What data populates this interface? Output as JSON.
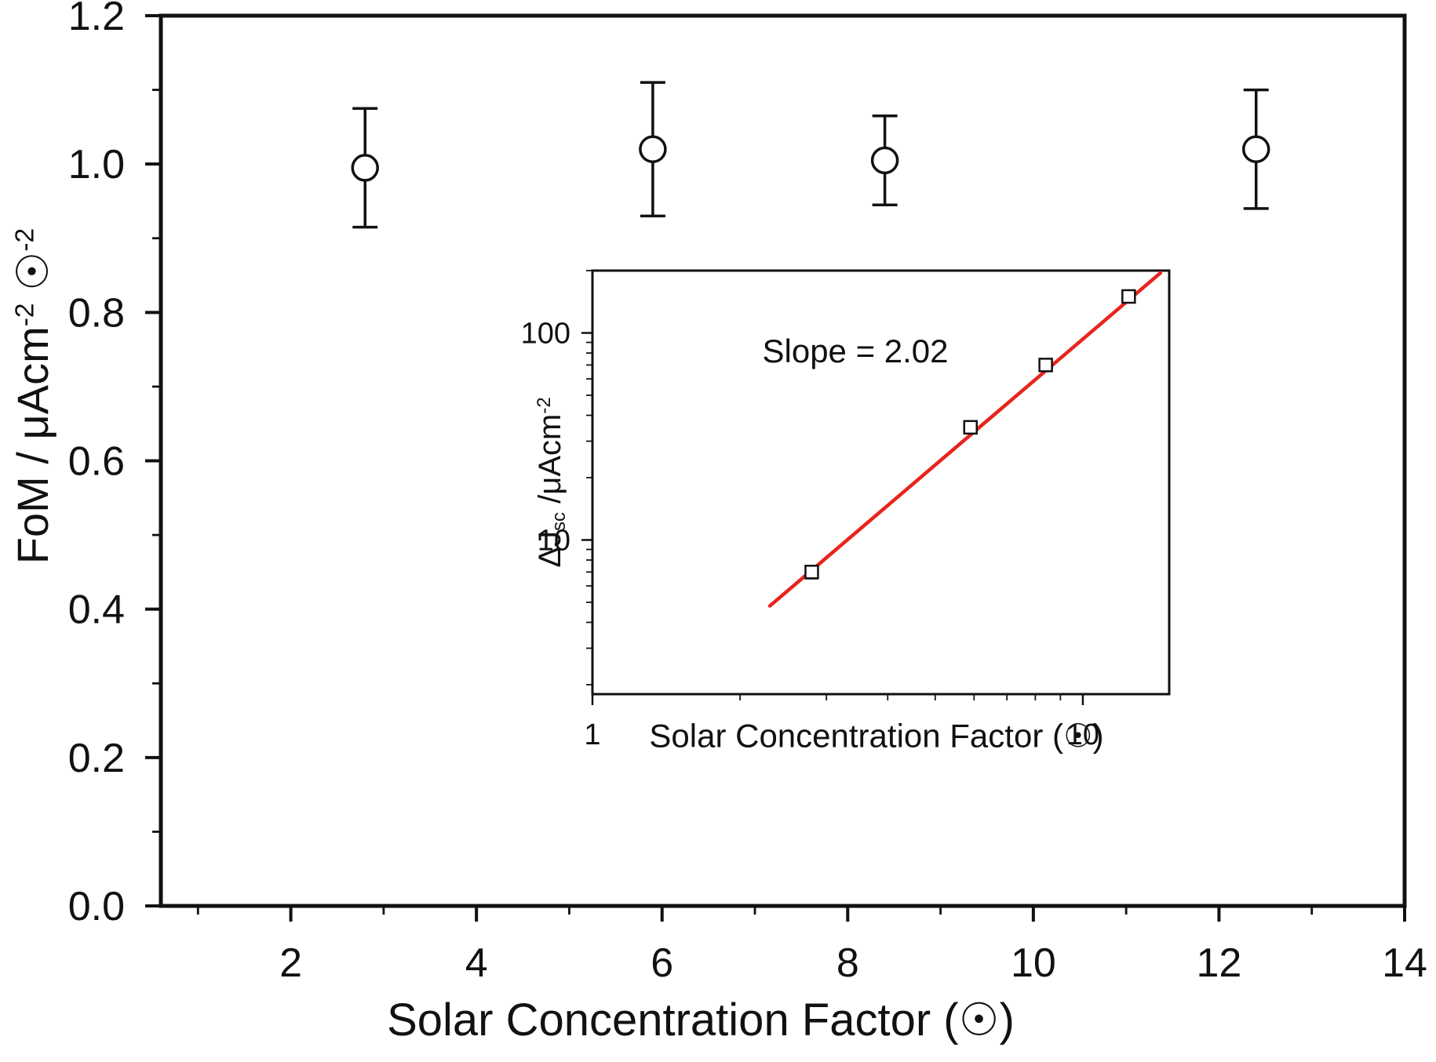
{
  "figure": {
    "background": "#ffffff"
  },
  "colors": {
    "ink": "#111111",
    "marker": "#111111",
    "fit_line": "#e8241c",
    "background": "#ffffff"
  },
  "chart_data": [
    {
      "id": "main-plot",
      "type": "scatter",
      "x_scale": "linear",
      "y_scale": "linear",
      "xlim": [
        0.6,
        14.0
      ],
      "ylim": [
        0.0,
        1.2
      ],
      "grid": false,
      "legend": false,
      "xlabel": "Solar Concentration Factor (☉)",
      "ylabel_segments": [
        {
          "text": "FoM / "
        },
        {
          "text": "μAcm"
        },
        {
          "text": "-2",
          "style": "sup"
        },
        {
          "text": " "
        },
        {
          "text": "☉"
        },
        {
          "text": "-2",
          "style": "sup"
        }
      ],
      "x_ticks": [
        2,
        4,
        6,
        8,
        10,
        12,
        14
      ],
      "x_tick_labels": [
        "2",
        "4",
        "6",
        "8",
        "10",
        "12",
        "14"
      ],
      "x_minor_ticks": [
        1,
        3,
        5,
        7,
        9,
        11,
        13
      ],
      "y_ticks": [
        0.0,
        0.2,
        0.4,
        0.6,
        0.8,
        1.0,
        1.2
      ],
      "y_tick_labels": [
        "0.0",
        "0.2",
        "0.4",
        "0.6",
        "0.8",
        "1.0",
        "1.2"
      ],
      "y_minor_ticks": [
        0.1,
        0.3,
        0.5,
        0.7,
        0.9,
        1.1
      ],
      "series": [
        {
          "name": "FoM",
          "marker": "circle",
          "x": [
            2.8,
            5.9,
            8.4,
            12.4
          ],
          "y": [
            0.995,
            1.02,
            1.005,
            1.02
          ],
          "y_err": [
            0.08,
            0.09,
            0.06,
            0.08
          ]
        }
      ]
    },
    {
      "id": "inset-plot",
      "type": "scatter",
      "x_scale": "log",
      "y_scale": "log",
      "xlim": [
        1,
        15
      ],
      "ylim": [
        1.8,
        200
      ],
      "grid": false,
      "legend": false,
      "annotation": "Slope = 2.02",
      "xlabel": "Solar Concentration Factor (☉)",
      "ylabel_segments": [
        {
          "text": "ΔJ"
        },
        {
          "text": "sc",
          "style": "sub"
        },
        {
          "text": " /μAcm"
        },
        {
          "text": "-2",
          "style": "sup"
        }
      ],
      "x_ticks": [
        1,
        10
      ],
      "x_tick_labels": [
        "1",
        "10"
      ],
      "x_minor_ticks": [
        2,
        3,
        4,
        5,
        6,
        7,
        8,
        9
      ],
      "y_ticks": [
        10,
        100
      ],
      "y_tick_labels": [
        "10",
        "100"
      ],
      "y_minor_ticks": [
        2,
        3,
        4,
        5,
        6,
        7,
        8,
        9,
        20,
        30,
        40,
        50,
        60,
        70,
        80,
        90,
        200
      ],
      "fit_line": {
        "slope": 2.02,
        "x": [
          2.3,
          14.4
        ],
        "y": [
          4.8,
          195
        ]
      },
      "series": [
        {
          "name": "Delta Jsc",
          "marker": "square",
          "x": [
            2.8,
            5.9,
            8.4,
            12.4
          ],
          "y": [
            7,
            35,
            70,
            150
          ],
          "y_err": [
            0.5,
            2.2,
            3.5,
            8
          ]
        }
      ]
    }
  ]
}
